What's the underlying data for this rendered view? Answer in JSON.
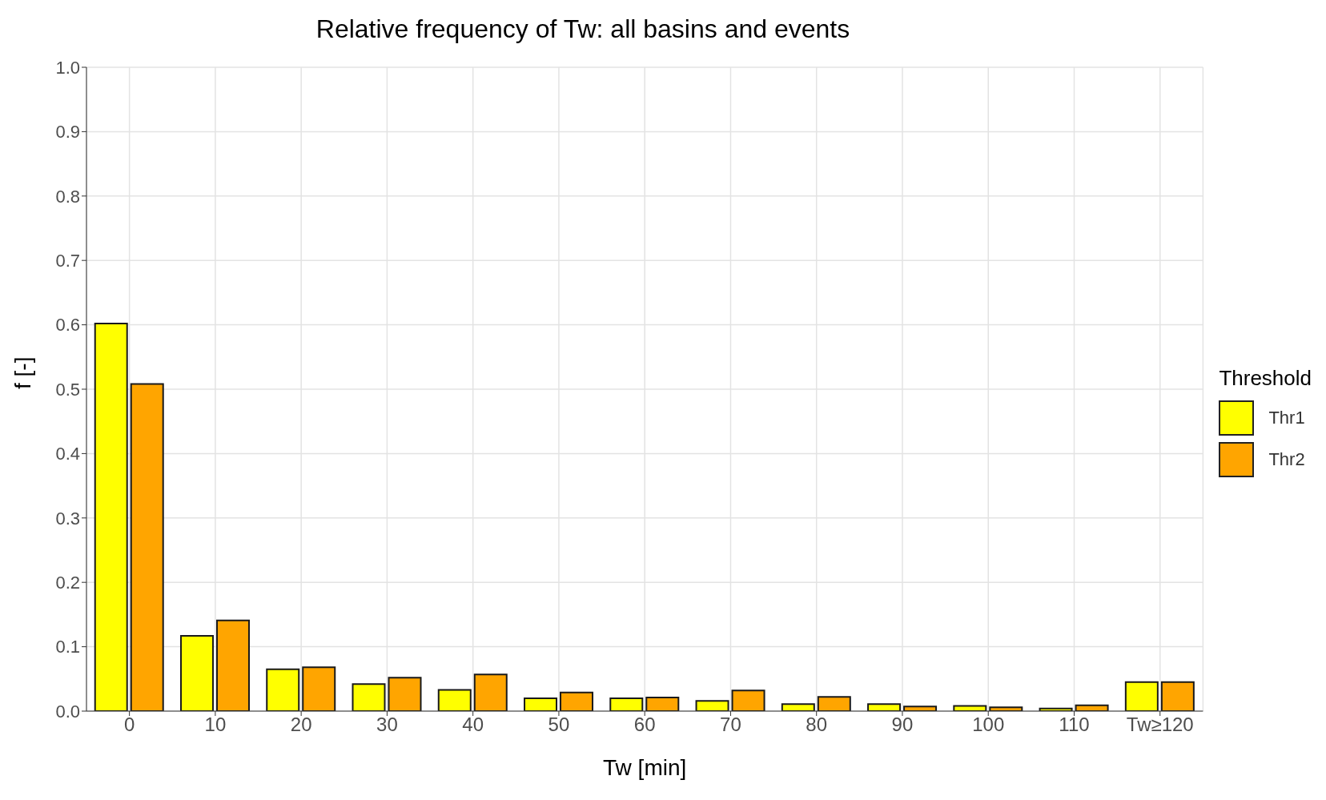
{
  "chart_data": {
    "type": "bar",
    "title": "Relative frequency of Tw: all basins and events",
    "xlabel": "Tw [min]",
    "ylabel": "f [-]",
    "legend_title": "Threshold",
    "categories": [
      "0",
      "10",
      "20",
      "30",
      "40",
      "50",
      "60",
      "70",
      "80",
      "90",
      "100",
      "110",
      "Tw≥120"
    ],
    "series": [
      {
        "name": "Thr1",
        "color": "#ffff00",
        "values": [
          0.602,
          0.117,
          0.065,
          0.042,
          0.033,
          0.02,
          0.02,
          0.016,
          0.011,
          0.011,
          0.008,
          0.004,
          0.045
        ]
      },
      {
        "name": "Thr2",
        "color": "#ffa500",
        "values": [
          0.508,
          0.141,
          0.068,
          0.052,
          0.057,
          0.029,
          0.021,
          0.032,
          0.022,
          0.007,
          0.006,
          0.009,
          0.045
        ]
      }
    ],
    "ylim": [
      0,
      1
    ],
    "yticks": [
      {
        "value": 0,
        "label": "0.0"
      },
      0.1,
      0.2,
      0.3,
      0.4,
      0.5,
      0.6,
      0.7,
      0.8,
      0.9,
      {
        "value": 1,
        "label": "1.0"
      }
    ],
    "grid": true,
    "legend": "right"
  }
}
